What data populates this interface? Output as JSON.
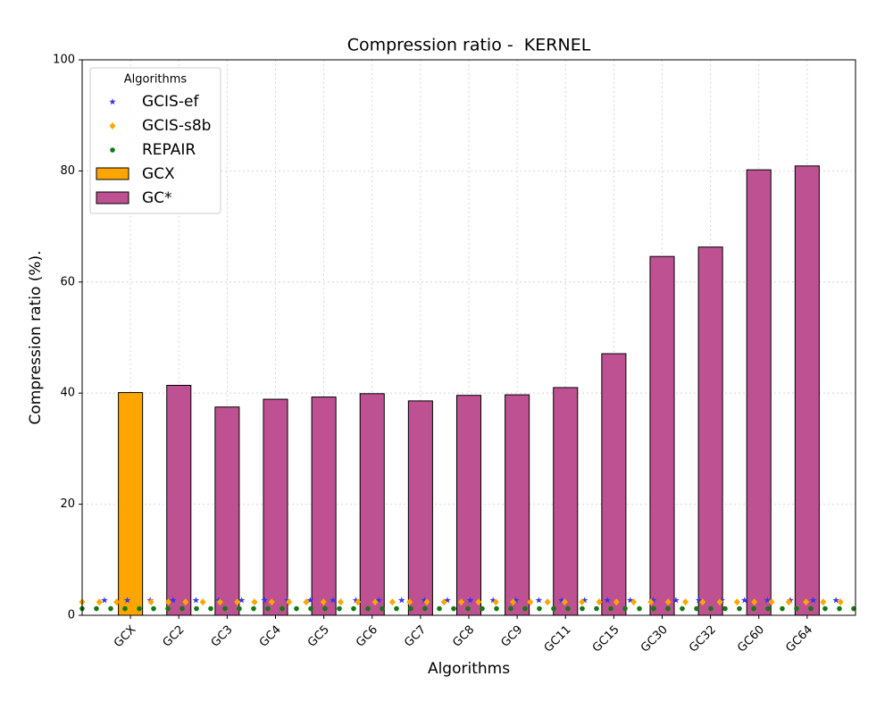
{
  "chart_data": {
    "type": "bar",
    "title": "Compression ratio -  KERNEL",
    "xlabel": "Algorithms",
    "ylabel": "Compression ratio (%).",
    "legend_title": "Algorithms",
    "legend": "upper left",
    "grid": true,
    "categories": [
      "GCX",
      "GC2",
      "GC3",
      "GC4",
      "GC5",
      "GC6",
      "GC7",
      "GC8",
      "GC9",
      "GC11",
      "GC15",
      "GC30",
      "GC32",
      "GC60",
      "GC64"
    ],
    "series": [
      {
        "name": "GCX",
        "color": "#ffa500",
        "values": [
          40.1,
          null,
          null,
          null,
          null,
          null,
          null,
          null,
          null,
          null,
          null,
          null,
          null,
          null,
          null
        ]
      },
      {
        "name": "GC*",
        "color": "#bd5191",
        "values": [
          null,
          41.4,
          37.5,
          38.9,
          39.3,
          39.9,
          38.6,
          39.6,
          39.7,
          41.0,
          47.1,
          64.6,
          66.3,
          80.2,
          80.9
        ]
      }
    ],
    "lines": [
      {
        "name": "GCIS-ef",
        "color": "#3333ee",
        "marker": "star",
        "value": 2.7
      },
      {
        "name": "GCIS-s8b",
        "color": "#ffa500",
        "marker": "diamond",
        "value": 2.4
      },
      {
        "name": "REPAIR",
        "color": "#117a11",
        "marker": "circle",
        "value": 1.2
      }
    ],
    "ylim": [
      0,
      100
    ],
    "yticks": [
      0,
      20,
      40,
      60,
      80,
      100
    ]
  }
}
